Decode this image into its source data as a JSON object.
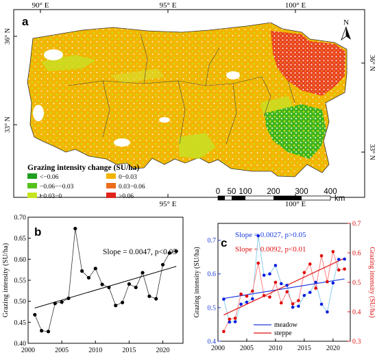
{
  "panel_a": {
    "letter": "a",
    "top_ticks": [
      "90° E",
      "95° E",
      "100° E"
    ],
    "bottom_ticks": [
      "95° E",
      "100° E"
    ],
    "left_ticks": [
      "36° N",
      "33° N"
    ],
    "right_ticks": [
      "36° N",
      "33° N"
    ],
    "north_label": "N",
    "legend": {
      "title": "Grazing intensity change (SU/ha)",
      "items": [
        {
          "label": "<−0.06",
          "color": "#1f9e1f"
        },
        {
          "label": "0−0.03",
          "color": "#f3b400"
        },
        {
          "label": "−0.06−−0.03",
          "color": "#55c21c"
        },
        {
          "label": "0.03−0.06",
          "color": "#ec6c1c"
        },
        {
          "label": "−0.03−0",
          "color": "#c6e31c"
        },
        {
          "label": ">0.06",
          "color": "#e0231c"
        }
      ]
    },
    "scalebar": {
      "ticks": [
        "0",
        "50",
        "100",
        "200",
        "300",
        "400"
      ],
      "unit": "km"
    }
  },
  "chart_data": [
    {
      "type": "line",
      "panel": "b",
      "letter": "b",
      "x": [
        2001,
        2002,
        2003,
        2004,
        2005,
        2006,
        2007,
        2008,
        2009,
        2010,
        2011,
        2012,
        2013,
        2014,
        2015,
        2016,
        2017,
        2018,
        2019,
        2020,
        2021,
        2022
      ],
      "series": [
        {
          "values": [
            0.468,
            0.43,
            0.428,
            0.495,
            0.498,
            0.507,
            0.673,
            0.572,
            0.556,
            0.578,
            0.54,
            0.533,
            0.49,
            0.497,
            0.541,
            0.533,
            0.568,
            0.512,
            0.506,
            0.587,
            0.615,
            0.619
          ]
        }
      ],
      "trend": {
        "start": [
          2001,
          0.484
        ],
        "end": [
          2022,
          0.583
        ]
      },
      "annotation": "Slope = 0.0047, p<0.05",
      "ylabel": "Grazing intensity (SU/ha)",
      "xlim": [
        2000,
        2023
      ],
      "ylim": [
        0.4,
        0.7
      ],
      "xticks": [
        "2000",
        "2005",
        "2010",
        "2015",
        "2020"
      ],
      "yticks": [
        "0.40",
        "0.45",
        "0.50",
        "0.55",
        "0.60",
        "0.65",
        "0.70"
      ]
    },
    {
      "type": "line",
      "panel": "c",
      "letter": "c",
      "x": [
        2001,
        2002,
        2003,
        2004,
        2005,
        2006,
        2007,
        2008,
        2009,
        2010,
        2011,
        2012,
        2013,
        2014,
        2015,
        2016,
        2017,
        2018,
        2019,
        2020,
        2021,
        2022
      ],
      "series": [
        {
          "name": "meadow",
          "color": "#87ceeb",
          "marker_color": "#0a1ee0",
          "axis": "left",
          "values": [
            0.525,
            0.457,
            0.458,
            0.51,
            0.516,
            0.526,
            0.713,
            0.596,
            0.6,
            0.625,
            0.571,
            0.566,
            0.501,
            0.504,
            0.536,
            0.545,
            0.575,
            0.51,
            0.487,
            0.573,
            0.643,
            0.644
          ]
        },
        {
          "name": "steppe",
          "color": "#ff8080",
          "marker_color": "#e00000",
          "axis": "right",
          "values": [
            0.333,
            0.375,
            0.378,
            0.46,
            0.453,
            0.47,
            0.565,
            0.455,
            0.45,
            0.5,
            0.43,
            0.468,
            0.427,
            0.438,
            0.533,
            0.562,
            0.48,
            0.59,
            0.502,
            0.604,
            0.542,
            0.545
          ]
        }
      ],
      "trends": [
        {
          "name": "meadow",
          "color": "#1a3ae0",
          "axis": "left",
          "start": [
            2001,
            0.527
          ],
          "end": [
            2022,
            0.585
          ]
        },
        {
          "name": "steppe",
          "color": "#e01010",
          "axis": "right",
          "start": [
            2001,
            0.389
          ],
          "end": [
            2022,
            0.582
          ]
        }
      ],
      "annotations": [
        {
          "text": "Slope = 0.0027, p>0.05",
          "color": "#1a3ae0"
        },
        {
          "text": "Slope = 0.0092, p<0.01",
          "color": "#e01010"
        }
      ],
      "ylabel_left": "Grazing intensity (SU/ha)",
      "ylabel_right": "Grazing intensity (SU/ha)",
      "xlim": [
        2000,
        2023
      ],
      "ylim_left": [
        0.4,
        0.75
      ],
      "ylim_right": [
        0.3,
        0.7
      ],
      "xticks": [
        "2000",
        "2005",
        "2010",
        "2015",
        "2020"
      ],
      "yticks_left": [
        "0.4",
        "0.5",
        "0.6",
        "0.7"
      ],
      "yticks_right": [
        "0.3",
        "0.4",
        "0.5",
        "0.6",
        "0.7"
      ],
      "legend_position": "bottom-center"
    }
  ]
}
